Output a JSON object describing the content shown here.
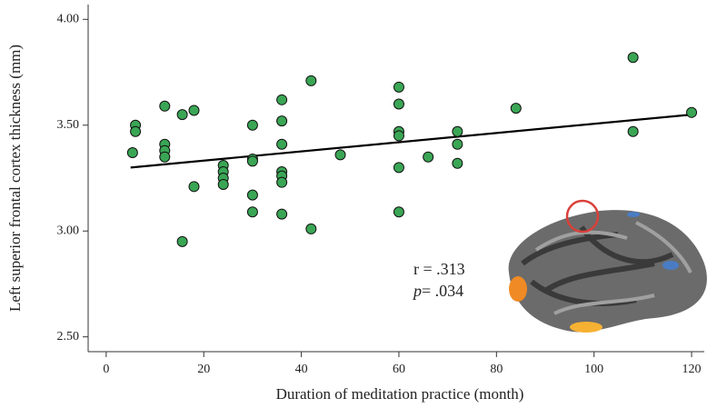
{
  "chart_data": {
    "type": "scatter",
    "x_label": "Duration of meditation practice (month)",
    "y_label": "Left superior frontal cortex thickness (mm)",
    "annotation_r": "r = .313",
    "annotation_p_symbol": "p",
    "annotation_p": "= .034",
    "color": "#3aa655",
    "x": [
      5.4,
      6,
      6,
      12,
      12,
      12,
      12,
      15.6,
      18,
      18,
      15.6,
      24,
      24,
      24,
      24,
      30,
      30,
      30,
      30,
      30,
      36,
      36,
      36,
      36,
      36,
      36,
      36,
      42,
      42,
      48,
      60,
      60,
      60,
      60,
      60,
      60,
      66,
      72,
      72,
      72,
      84,
      108,
      108,
      120
    ],
    "values": [
      3.37,
      3.5,
      3.47,
      3.59,
      3.41,
      3.38,
      3.35,
      3.55,
      3.57,
      3.21,
      2.95,
      3.31,
      3.28,
      3.25,
      3.22,
      3.5,
      3.34,
      3.33,
      3.17,
      3.09,
      3.62,
      3.52,
      3.41,
      3.28,
      3.26,
      3.23,
      3.08,
      3.71,
      3.01,
      3.36,
      3.68,
      3.6,
      3.47,
      3.45,
      3.3,
      3.09,
      3.35,
      3.47,
      3.41,
      3.32,
      3.58,
      3.82,
      3.47,
      3.56
    ],
    "fit": {
      "x": [
        5,
        120
      ],
      "y": [
        3.3,
        3.55
      ]
    },
    "xlim": [
      -3.7,
      122.6
    ],
    "ylim": [
      2.43,
      4.07
    ],
    "xticks": [
      0,
      20,
      40,
      60,
      80,
      100,
      120
    ],
    "yticks": [
      {
        "value": 2.5,
        "label": "2.50"
      },
      {
        "value": 3,
        "label": "3.00"
      },
      {
        "value": 3.5,
        "label": "3.50"
      },
      {
        "value": 4,
        "label": "4.00"
      }
    ]
  }
}
